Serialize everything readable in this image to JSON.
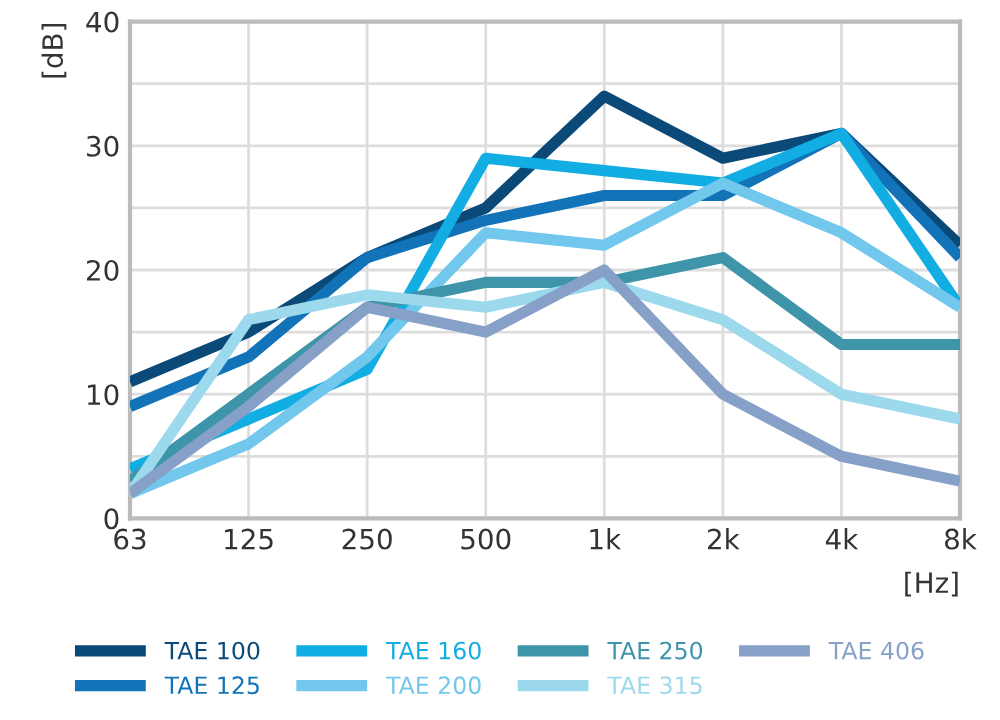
{
  "chart_data": {
    "type": "line",
    "xlabel": "[Hz]",
    "ylabel": "[dB]",
    "categories": [
      "63",
      "125",
      "250",
      "500",
      "1k",
      "2k",
      "4k",
      "8k"
    ],
    "ylim": [
      0,
      40
    ],
    "yticks": [
      0,
      {
        "value": 5,
        "label": null
      },
      10,
      {
        "value": 15,
        "label": null
      },
      20,
      {
        "value": 25,
        "label": null
      },
      30,
      {
        "value": 35,
        "label": null
      },
      40
    ],
    "grid": true,
    "legend": "bottom",
    "marker": "none",
    "line_style": "solid",
    "series": [
      {
        "name": "TAE 100",
        "color": "#0b4a78",
        "values": [
          11,
          15,
          21,
          25,
          34,
          29,
          31,
          22
        ]
      },
      {
        "name": "TAE 125",
        "color": "#1273b8",
        "values": [
          9,
          13,
          21,
          24,
          26,
          26,
          31,
          21
        ]
      },
      {
        "name": "TAE 160",
        "color": "#12ade3",
        "values": [
          4,
          8,
          12,
          29,
          28,
          27,
          31,
          17
        ]
      },
      {
        "name": "TAE 200",
        "color": "#72c8ec",
        "values": [
          2,
          6,
          13,
          23,
          22,
          27,
          23,
          17
        ]
      },
      {
        "name": "TAE 250",
        "color": "#3e94a8",
        "values": [
          3,
          10,
          17,
          19,
          19,
          21,
          14,
          14
        ]
      },
      {
        "name": "TAE 315",
        "color": "#9cd9ec",
        "values": [
          2,
          16,
          18,
          17,
          19,
          16,
          10,
          8
        ]
      },
      {
        "name": "TAE 406",
        "color": "#86a0c8",
        "values": [
          2,
          9,
          17,
          15,
          20,
          10,
          5,
          3
        ]
      }
    ]
  }
}
